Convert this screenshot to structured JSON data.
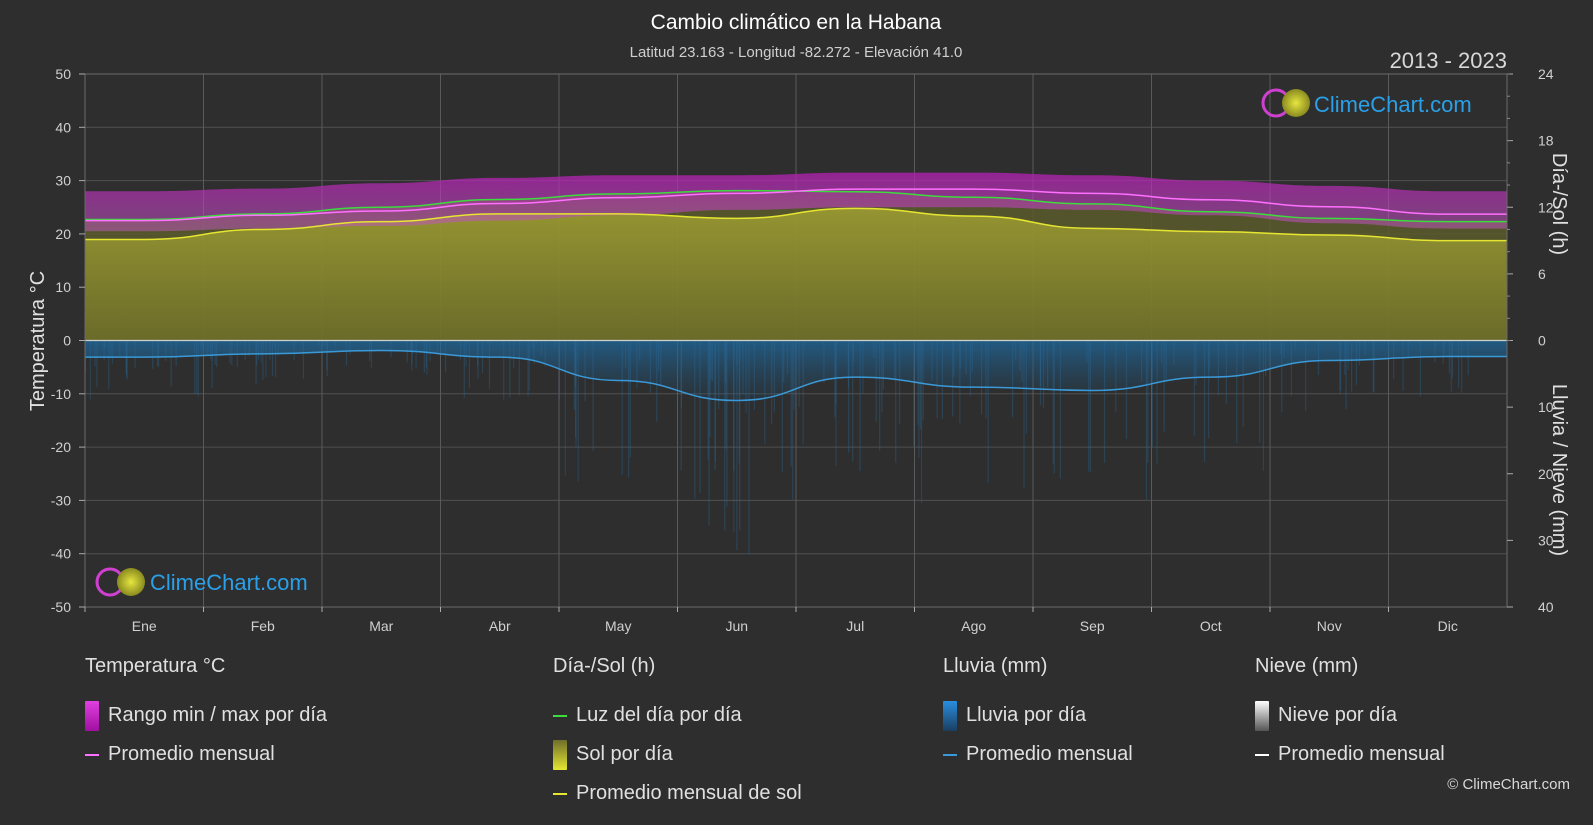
{
  "chart_data": {
    "type": "area",
    "title": "Cambio climático en la Habana",
    "subtitle": "Latitud 23.163 - Longitud -82.272 - Elevación 41.0",
    "period": "2013 - 2023",
    "brand": "ClimeChart.com",
    "copyright": "© ClimeChart.com",
    "categories": [
      "Ene",
      "Feb",
      "Mar",
      "Abr",
      "May",
      "Jun",
      "Jul",
      "Ago",
      "Sep",
      "Oct",
      "Nov",
      "Dic"
    ],
    "y_left": {
      "label": "Temperatura °C",
      "range": [
        -50,
        50
      ],
      "ticks": [
        50,
        40,
        30,
        20,
        10,
        0,
        -10,
        -20,
        -30,
        -40,
        -50
      ]
    },
    "y_right_top": {
      "label": "Día-/Sol (h)",
      "range": [
        0,
        24
      ],
      "ticks": [
        24,
        18,
        12,
        6,
        0
      ]
    },
    "y_right_bottom": {
      "label": "Lluvia / Nieve (mm)",
      "range": [
        0,
        40
      ],
      "ticks": [
        0,
        10,
        20,
        30,
        40
      ]
    },
    "series": [
      {
        "name": "Luz del día por día",
        "unit": "h",
        "color": "#3ddc3d",
        "values": [
          10.9,
          11.4,
          12.0,
          12.7,
          13.2,
          13.5,
          13.4,
          12.9,
          12.3,
          11.6,
          11.0,
          10.7
        ]
      },
      {
        "name": "Promedio mensual de sol",
        "unit": "h",
        "color": "#e6e632",
        "values": [
          9.1,
          10.0,
          10.7,
          11.4,
          11.4,
          11.0,
          11.9,
          11.2,
          10.1,
          9.8,
          9.5,
          9.0
        ]
      },
      {
        "name": "Promedio mensual",
        "group": "Temperatura °C",
        "unit": "°C",
        "color": "#ff70ff",
        "values": [
          22.5,
          23.5,
          24.3,
          25.7,
          26.8,
          27.6,
          28.4,
          28.4,
          27.6,
          26.4,
          25.1,
          23.7
        ]
      },
      {
        "name": "Promedio mensual",
        "group": "Lluvia (mm)",
        "unit": "mm",
        "color": "#3a9ad9",
        "values": [
          2.5,
          2.0,
          1.5,
          2.5,
          6.0,
          9.0,
          5.5,
          7.0,
          7.5,
          5.5,
          3.0,
          2.4
        ]
      }
    ],
    "temp_range": {
      "name": "Rango min / max por día",
      "min": [
        20.5,
        21.0,
        21.5,
        22.5,
        23.5,
        24.5,
        25.0,
        25.0,
        24.5,
        23.5,
        22.0,
        21.0
      ],
      "max": [
        28.0,
        28.5,
        29.5,
        30.5,
        31.0,
        31.0,
        31.5,
        31.5,
        31.0,
        30.0,
        29.0,
        28.0
      ]
    },
    "grid": true,
    "legend_position": "bottom"
  },
  "legend": {
    "temp": {
      "title": "Temperatura °C",
      "range_label": "Rango min / max por día",
      "avg_label": "Promedio mensual"
    },
    "sun": {
      "title": "Día-/Sol (h)",
      "daylight_label": "Luz del día por día",
      "sun_label": "Sol por día",
      "sun_avg_label": "Promedio mensual de sol"
    },
    "rain": {
      "title": "Lluvia (mm)",
      "rain_label": "Lluvia por día",
      "avg_label": "Promedio mensual"
    },
    "snow": {
      "title": "Nieve (mm)",
      "snow_label": "Nieve por día",
      "avg_label": "Promedio mensual"
    }
  },
  "colors": {
    "background": "#2e2e2e",
    "grid": "#4d4d4d",
    "sun_fill": "#8f8f2e",
    "range_fill": "#b000b0",
    "rain_fill": "#1f5f8a",
    "brand_blue": "#2aa0e8"
  }
}
